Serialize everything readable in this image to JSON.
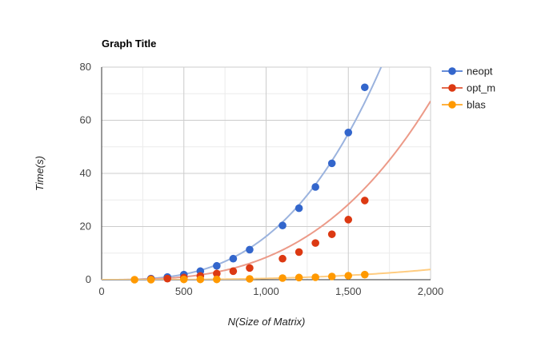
{
  "chart_data": {
    "type": "scatter",
    "title": "Graph Title",
    "xlabel": "N(Size of Matrix)",
    "ylabel": "Time(s)",
    "xlim": [
      0,
      2000
    ],
    "ylim": [
      0,
      80
    ],
    "x_ticks": [
      0,
      500,
      1000,
      1500,
      2000
    ],
    "x_tick_labels": [
      "0",
      "500",
      "1,000",
      "1,500",
      "2,000"
    ],
    "y_ticks": [
      0,
      20,
      40,
      60,
      80
    ],
    "y_tick_labels": [
      "0",
      "20",
      "40",
      "60",
      "80"
    ],
    "grid": true,
    "legend_position": "right",
    "series": [
      {
        "name": "neopt",
        "color": "#3366cc",
        "trendline_color": "#9bb3de",
        "trend_cubic_coef": 1.63e-08,
        "x": [
          300,
          400,
          500,
          600,
          700,
          800,
          900,
          1100,
          1200,
          1300,
          1400,
          1500,
          1600
        ],
        "y": [
          0.4,
          1.0,
          1.9,
          3.2,
          5.2,
          7.9,
          11.3,
          20.4,
          26.9,
          34.9,
          43.8,
          55.4,
          72.4
        ]
      },
      {
        "name": "opt_m",
        "color": "#dc3912",
        "trendline_color": "#ec9a88",
        "trend_cubic_coef": 8.4e-09,
        "x": [
          300,
          400,
          500,
          600,
          700,
          800,
          900,
          1100,
          1200,
          1300,
          1400,
          1500,
          1600
        ],
        "y": [
          0.2,
          0.4,
          0.8,
          1.4,
          2.3,
          3.2,
          4.4,
          7.9,
          10.4,
          13.8,
          17.1,
          22.6,
          29.8
        ]
      },
      {
        "name": "blas",
        "color": "#ff9900",
        "trendline_color": "#ffcc80",
        "trend_cubic_coef": 4.8e-10,
        "x": [
          200,
          300,
          500,
          600,
          700,
          900,
          1100,
          1200,
          1300,
          1400,
          1500,
          1600
        ],
        "y": [
          0.0,
          0.0,
          0.1,
          0.1,
          0.1,
          0.3,
          0.6,
          0.8,
          0.9,
          1.2,
          1.5,
          1.9
        ]
      }
    ]
  }
}
